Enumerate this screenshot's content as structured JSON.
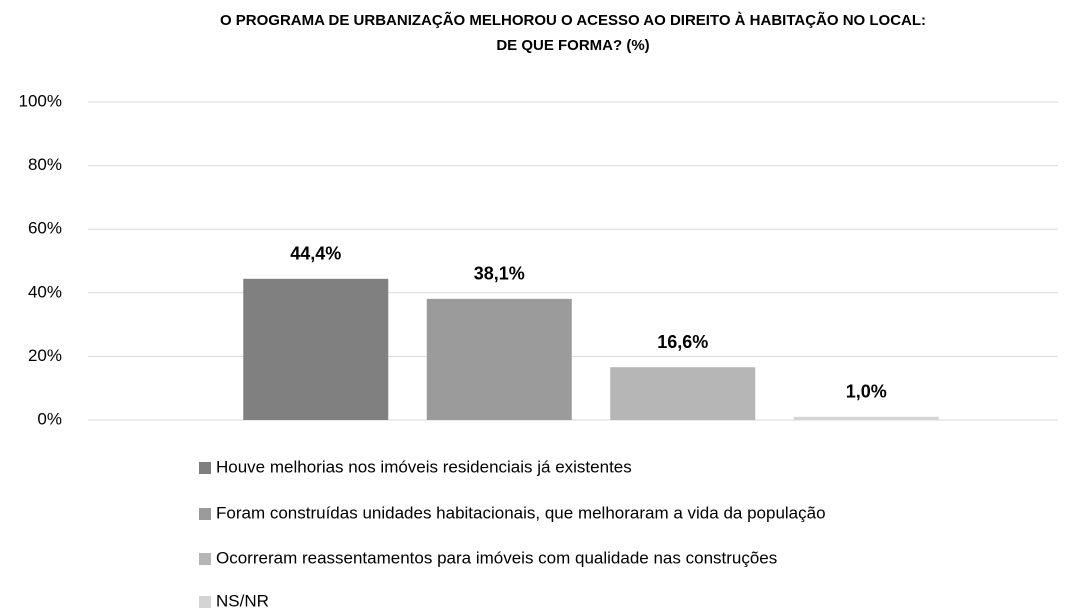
{
  "chart_data": {
    "type": "bar",
    "title": [
      "O PROGRAMA DE URBANIZAÇÃO MELHOROU O ACESSO AO DIREITO À HABITAÇÃO NO LOCAL:",
      "DE QUE FORMA? (%)"
    ],
    "categories": [
      null
    ],
    "series": [
      {
        "name": "Houve melhorias nos imóveis residenciais já existentes",
        "color": "#808080",
        "values": [
          44.4
        ],
        "value_labels": [
          "44,4%"
        ]
      },
      {
        "name": "Foram construídas unidades habitacionais, que melhoraram a vida da população",
        "color": "#9b9b9b",
        "values": [
          38.1
        ],
        "value_labels": [
          "38,1%"
        ]
      },
      {
        "name": "Ocorreram reassentamentos para imóveis com qualidade nas construções",
        "color": "#b6b6b6",
        "values": [
          16.6
        ],
        "value_labels": [
          "16,6%"
        ]
      },
      {
        "name": "NS/NR",
        "color": "#d4d4d4",
        "values": [
          1.0
        ],
        "value_labels": [
          "1,0%"
        ]
      }
    ],
    "ylim": [
      0,
      100
    ],
    "yticks": [
      {
        "value": 0,
        "label": "0%"
      },
      {
        "value": 20,
        "label": "20%"
      },
      {
        "value": 40,
        "label": "40%"
      },
      {
        "value": 60,
        "label": "60%"
      },
      {
        "value": 80,
        "label": "80%"
      },
      {
        "value": 100,
        "label": "100%"
      }
    ],
    "grid": true,
    "legend": "bottom"
  }
}
